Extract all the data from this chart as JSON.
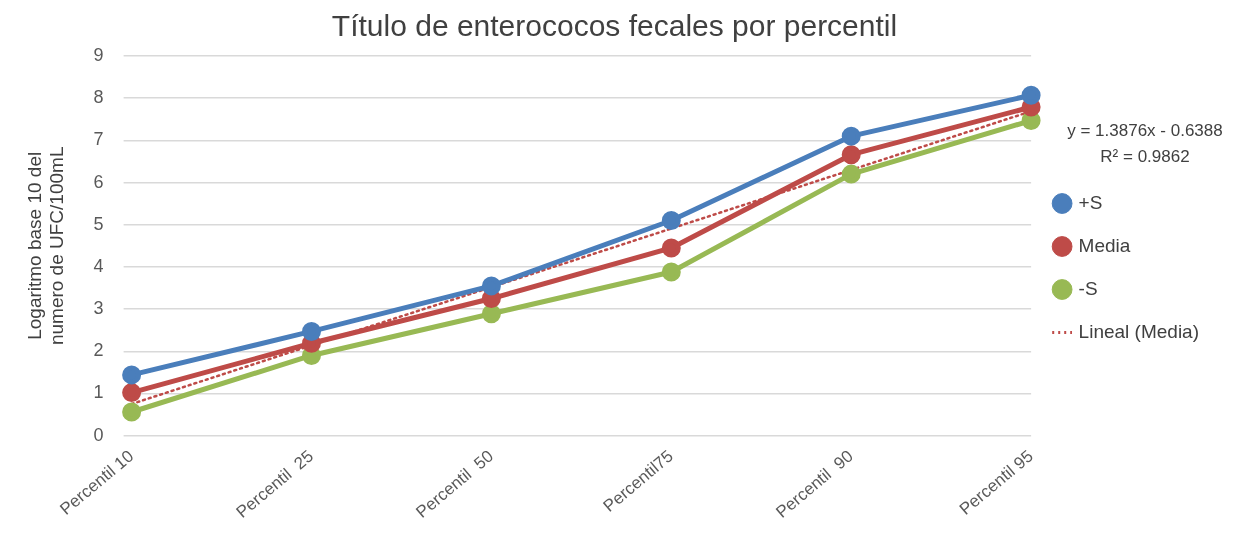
{
  "chart_data": {
    "type": "line",
    "title": "Título de enterococos fecales por percentil",
    "ylabel": "Logaritmo base 10 del numero de UFC/100mL",
    "categories": [
      "Percentil 10",
      "Percentil  25",
      "Percentil  50",
      "Percentil75",
      "Percentil  90",
      "Percentil 95"
    ],
    "series": [
      {
        "name": "+S",
        "color": "#4a7ebb",
        "values": [
          1.44,
          2.47,
          3.55,
          5.1,
          7.1,
          8.07
        ]
      },
      {
        "name": "Media",
        "color": "#be4b48",
        "values": [
          1.02,
          2.19,
          3.25,
          4.45,
          6.66,
          7.79
        ]
      },
      {
        "name": "-S",
        "color": "#98b954",
        "values": [
          0.56,
          1.9,
          2.89,
          3.88,
          6.2,
          7.47
        ]
      },
      {
        "name": "Lineal (Media)",
        "color": "#be4b48",
        "values": [
          0.75,
          2.14,
          3.52,
          4.91,
          6.3,
          7.69
        ],
        "line_style": "dotted",
        "marker": "none"
      }
    ],
    "ylim": [
      0,
      9
    ],
    "yticks": [
      0,
      1,
      2,
      3,
      4,
      5,
      6,
      7,
      8,
      9
    ],
    "grid": "y",
    "legend": "right",
    "marker": "circle",
    "line_style": "solid",
    "annotations": [
      "y = 1.3876x - 0.6388",
      "R² = 0.9862"
    ]
  }
}
